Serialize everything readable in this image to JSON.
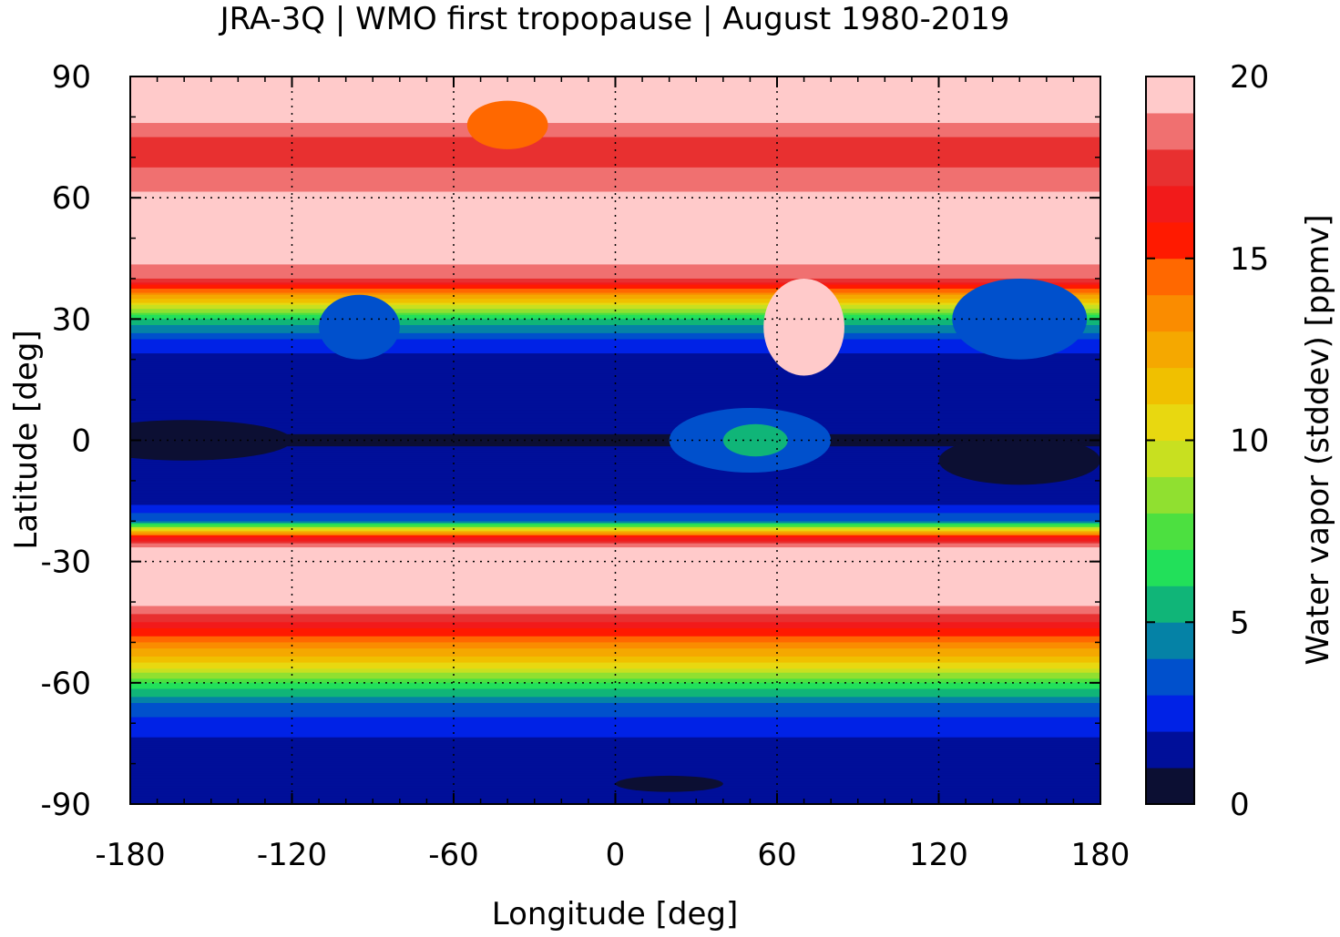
{
  "chart_data": {
    "type": "heatmap",
    "title": "JRA-3Q | WMO first tropopause | August 1980-2019",
    "xlabel": "Longitude [deg]",
    "ylabel": "Latitude [deg]",
    "xlim": [
      -180,
      180
    ],
    "ylim": [
      -90,
      90
    ],
    "xticks": [
      -180,
      -120,
      -60,
      0,
      60,
      120,
      180
    ],
    "yticks": [
      90,
      60,
      30,
      0,
      -30,
      -60,
      -90
    ],
    "grid": true,
    "colorbar": {
      "label": "Water vapor (stddev) [ppmv]",
      "range": [
        0,
        20
      ],
      "ticks": [
        20,
        15,
        10,
        5,
        0
      ],
      "levels": [
        {
          "from": 0,
          "to": 1,
          "color": "#0c0f33"
        },
        {
          "from": 1,
          "to": 2,
          "color": "#000f99"
        },
        {
          "from": 2,
          "to": 3,
          "color": "#0022e6"
        },
        {
          "from": 3,
          "to": 4,
          "color": "#0050cc"
        },
        {
          "from": 4,
          "to": 5,
          "color": "#0582a6"
        },
        {
          "from": 5,
          "to": 6,
          "color": "#10b578"
        },
        {
          "from": 6,
          "to": 7,
          "color": "#22e05a"
        },
        {
          "from": 7,
          "to": 8,
          "color": "#4ce040"
        },
        {
          "from": 8,
          "to": 9,
          "color": "#90e030"
        },
        {
          "from": 9,
          "to": 10,
          "color": "#c8e020"
        },
        {
          "from": 10,
          "to": 11,
          "color": "#e8d810"
        },
        {
          "from": 11,
          "to": 12,
          "color": "#f0c000"
        },
        {
          "from": 12,
          "to": 13,
          "color": "#f5a800"
        },
        {
          "from": 13,
          "to": 14,
          "color": "#fa8c00"
        },
        {
          "from": 14,
          "to": 15,
          "color": "#ff6800"
        },
        {
          "from": 15,
          "to": 16,
          "color": "#ff1a00"
        },
        {
          "from": 16,
          "to": 17,
          "color": "#f21a1a"
        },
        {
          "from": 17,
          "to": 18,
          "color": "#e83030"
        },
        {
          "from": 18,
          "to": 19,
          "color": "#f07070"
        },
        {
          "from": 19,
          "to": 20,
          "color": "#ffcaca"
        }
      ]
    },
    "zonal_profile": {
      "lat": [
        90,
        80,
        72,
        65,
        58,
        45,
        40,
        35,
        30,
        25,
        20,
        15,
        10,
        5,
        0,
        -5,
        -10,
        -15,
        -20,
        -24,
        -27,
        -30,
        -40,
        -45,
        -50,
        -55,
        -60,
        -65,
        -70,
        -75,
        -80,
        -85,
        -90
      ],
      "value": [
        19.5,
        19.5,
        17.0,
        18.5,
        19.5,
        19.5,
        18.0,
        12.0,
        6.0,
        3.0,
        1.5,
        1.5,
        1.5,
        1.5,
        0.8,
        1.5,
        1.5,
        1.5,
        4.0,
        16.0,
        19.5,
        19.5,
        19.5,
        17.0,
        14.0,
        11.0,
        7.0,
        4.0,
        2.5,
        1.8,
        1.8,
        1.5,
        1.0
      ]
    },
    "features": [
      {
        "kind": "blob",
        "lon": 50,
        "lat": 0,
        "rx": 30,
        "ry": 8,
        "value": 3
      },
      {
        "kind": "blob",
        "lon": 52,
        "lat": 0,
        "rx": 12,
        "ry": 4,
        "value": 5
      },
      {
        "kind": "blob",
        "lon": 70,
        "lat": 28,
        "rx": 15,
        "ry": 12,
        "value": 19.5
      },
      {
        "kind": "blob",
        "lon": -95,
        "lat": 28,
        "rx": 15,
        "ry": 8,
        "value": 3
      },
      {
        "kind": "blob",
        "lon": 150,
        "lat": 30,
        "rx": 25,
        "ry": 10,
        "value": 3
      },
      {
        "kind": "blob",
        "lon": -160,
        "lat": 0,
        "rx": 40,
        "ry": 5,
        "value": 0.5
      },
      {
        "kind": "blob",
        "lon": 150,
        "lat": -5,
        "rx": 30,
        "ry": 6,
        "value": 0.5
      },
      {
        "kind": "blob",
        "lon": -40,
        "lat": 78,
        "rx": 15,
        "ry": 6,
        "value": 14
      },
      {
        "kind": "blob",
        "lon": 20,
        "lat": -85,
        "rx": 20,
        "ry": 2,
        "value": 0.5
      }
    ]
  }
}
